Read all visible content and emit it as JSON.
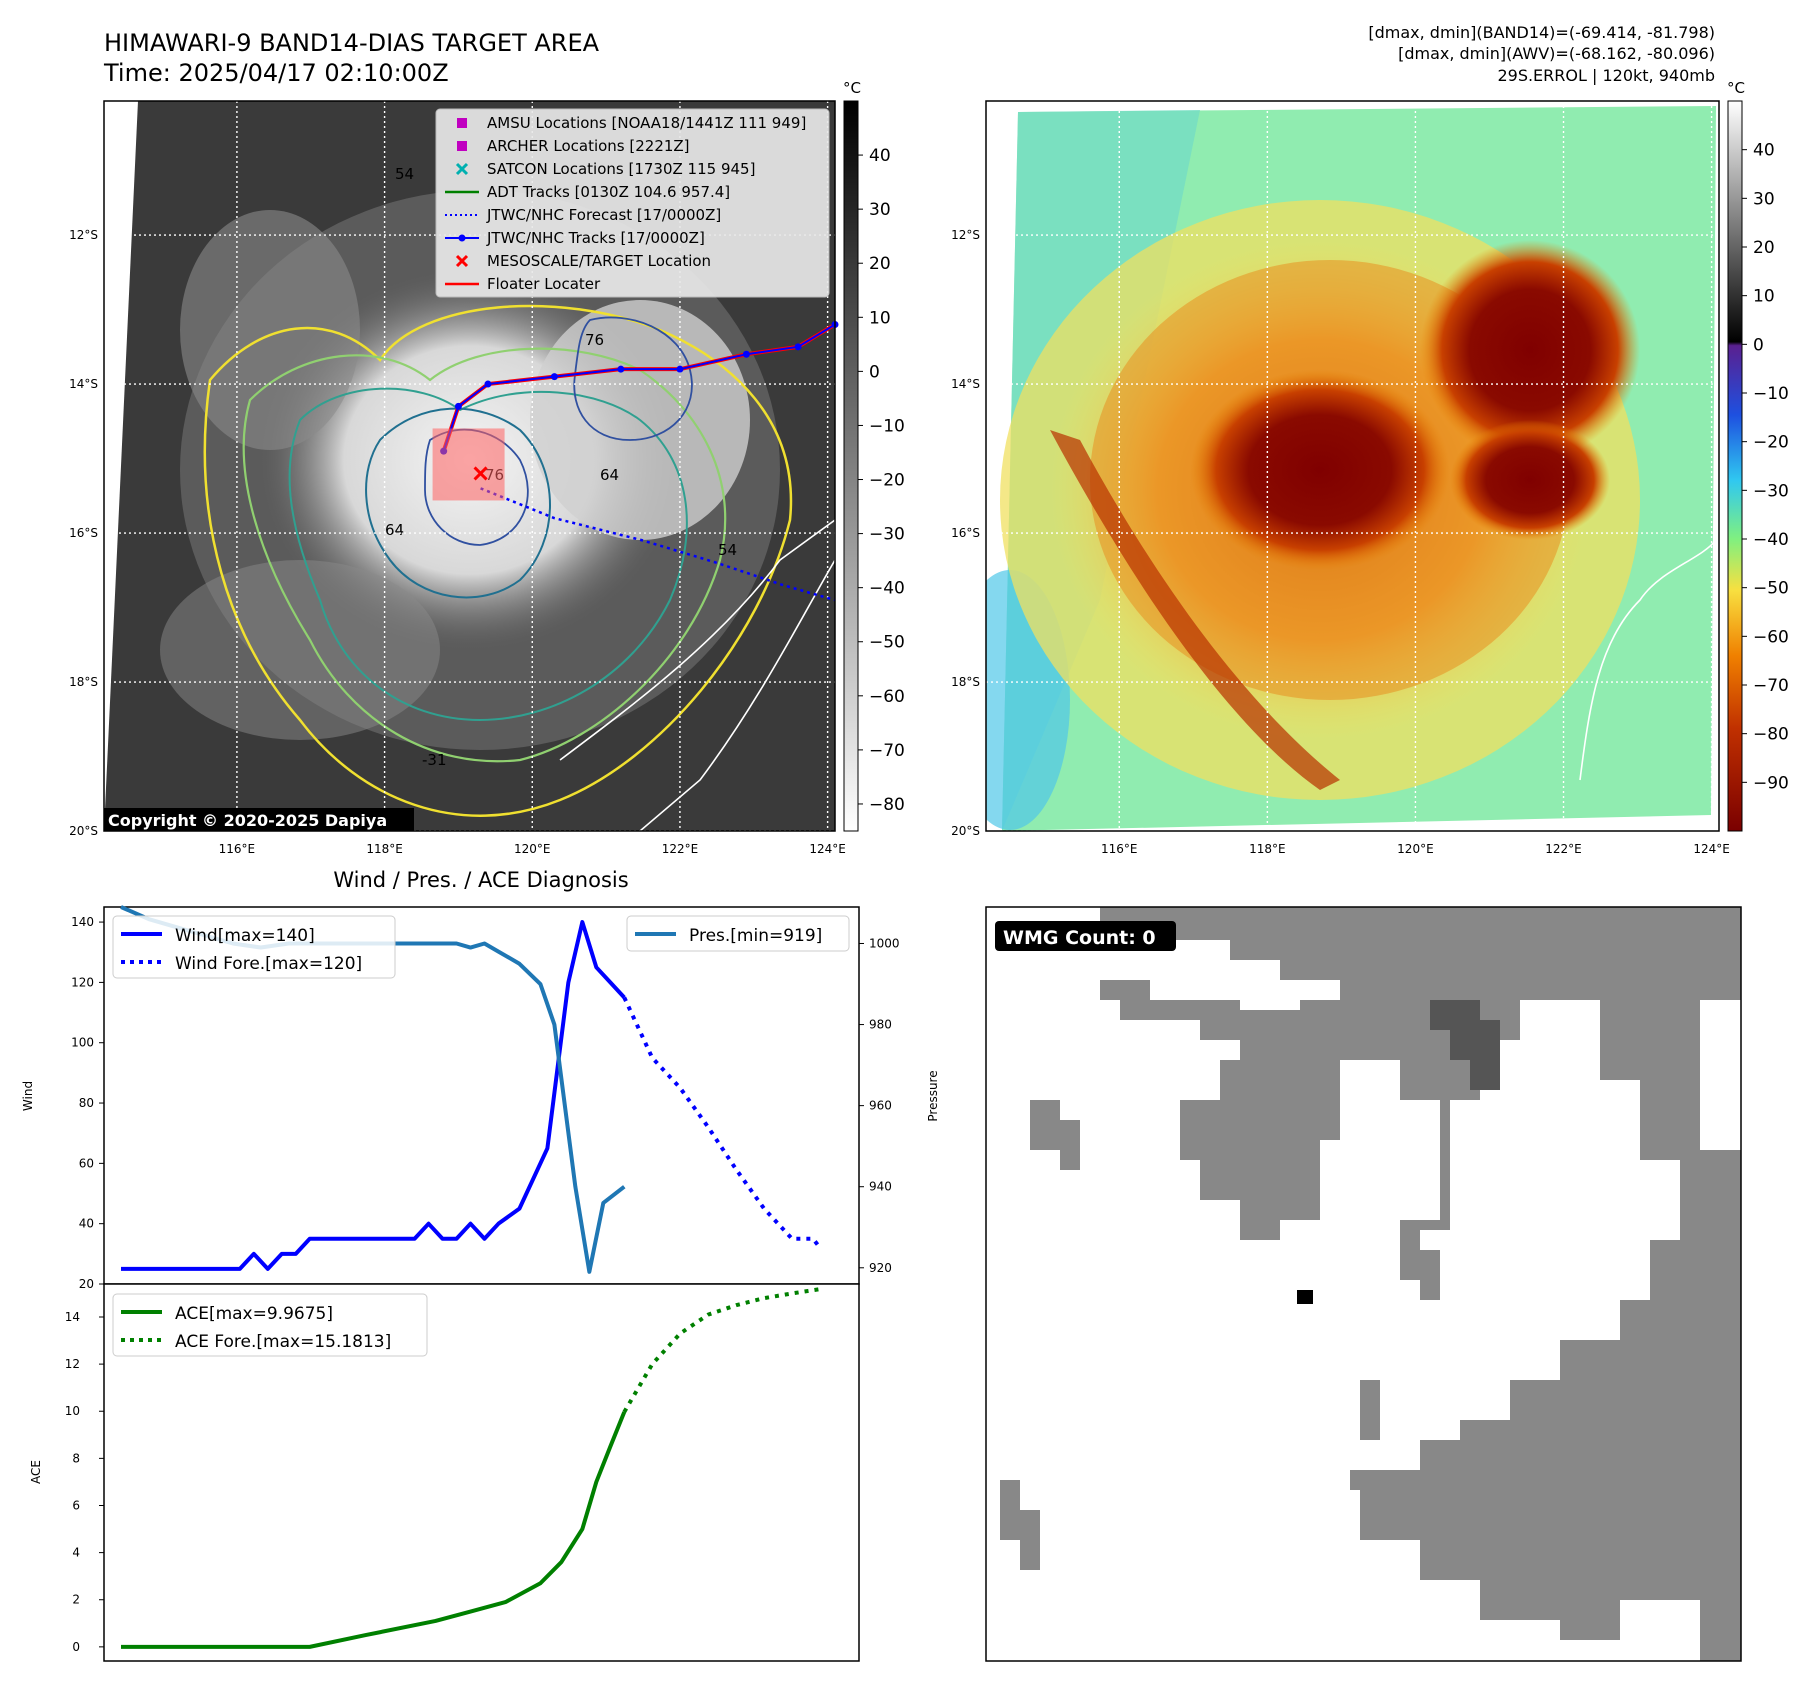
{
  "header": {
    "title_line1": "HIMAWARI-9 BAND14-DIAS TARGET AREA",
    "title_line2": "Time: 2025/04/17 02:10:00Z",
    "info_line1": "[dmax, dmin](BAND14)=(-69.414, -81.798)",
    "info_line2": "[dmax, dmin](AWV)=(-68.162, -80.096)",
    "info_line3": "29S.ERROL | 120kt, 940mb"
  },
  "map_common": {
    "lon_ticks": [
      "116°E",
      "118°E",
      "120°E",
      "122°E",
      "124°E"
    ],
    "lat_ticks": [
      "12°S",
      "14°S",
      "16°S",
      "18°S",
      "20°S"
    ],
    "colorbar_unit": "°C"
  },
  "ir_map": {
    "copyright": "Copyright © 2020-2025 Dapiya",
    "colorbar_ticks": [
      "40",
      "30",
      "20",
      "10",
      "0",
      "−10",
      "−20",
      "−30",
      "−40",
      "−50",
      "−60",
      "−70",
      "−80"
    ],
    "contour_labels": [
      "54",
      "76",
      "64",
      "76",
      "64",
      "54",
      "-31"
    ],
    "legend": [
      {
        "label": "AMSU Locations [NOAA18/1441Z 111 949]",
        "color": "#c000c0",
        "marker": "square"
      },
      {
        "label": "ARCHER Locations [2221Z]",
        "color": "#c000c0",
        "marker": "square"
      },
      {
        "label": "SATCON Locations [1730Z 115 945]",
        "color": "#00b0b0",
        "marker": "x"
      },
      {
        "label": "ADT Tracks [0130Z 104.6 957.4]",
        "color": "#008000",
        "marker": "line"
      },
      {
        "label": "JTWC/NHC Forecast [17/0000Z]",
        "color": "#0000ff",
        "marker": "dotted"
      },
      {
        "label": "JTWC/NHC Tracks [17/0000Z]",
        "color": "#0000ff",
        "marker": "line-dot"
      },
      {
        "label": "MESOSCALE/TARGET Location",
        "color": "#ff0000",
        "marker": "x"
      },
      {
        "label": "Floater Locater",
        "color": "#ff0000",
        "marker": "line"
      }
    ]
  },
  "enh_map": {
    "colorbar_ticks": [
      "40",
      "30",
      "20",
      "10",
      "0",
      "−10",
      "−20",
      "−30",
      "−40",
      "−50",
      "−60",
      "−70",
      "−80",
      "−90"
    ]
  },
  "diagnosis": {
    "title": "Wind / Pres. / ACE Diagnosis",
    "wind_ylabel": "Wind",
    "pres_ylabel": "Pressure",
    "ace_ylabel": "ACE",
    "legend_wind": "Wind[max=140]",
    "legend_wind_fore": "Wind Fore.[max=120]",
    "legend_pres": "Pres.[min=919]",
    "legend_ace": "ACE[max=9.9675]",
    "legend_ace_fore": "ACE Fore.[max=15.1813]"
  },
  "wmg": {
    "label": "WMG Count: 0"
  },
  "chart_data": [
    {
      "type": "heatmap",
      "title": "HIMAWARI-9 BAND14-DIAS TARGET AREA",
      "subtitle": "Time: 2025/04/17 02:10:00Z",
      "xlim": [
        114.2,
        124.1
      ],
      "ylim": [
        -20.0,
        -10.2
      ],
      "colorbar_range": [
        -85,
        50
      ],
      "colorbar_unit": "°C",
      "grid": true,
      "legend_position": "top-right",
      "jtwc_track": {
        "lon": [
          118.8,
          119.0,
          119.4,
          120.3,
          121.2,
          122.0,
          122.9,
          123.6,
          124.1
        ],
        "lat": [
          -14.9,
          -14.3,
          -14.0,
          -13.9,
          -13.8,
          -13.8,
          -13.6,
          -13.5,
          -13.2
        ]
      },
      "jtwc_forecast": {
        "lon": [
          119.3,
          120.3,
          121.5,
          122.5,
          123.4,
          124.1
        ],
        "lat": [
          -15.4,
          -15.8,
          -16.1,
          -16.4,
          -16.7,
          -16.9
        ]
      },
      "target": {
        "lon": 119.3,
        "lat": -15.2
      }
    },
    {
      "type": "heatmap",
      "xlim": [
        114.2,
        124.1
      ],
      "ylim": [
        -20.0,
        -10.2
      ],
      "colorbar_range": [
        -100,
        50
      ],
      "colorbar_unit": "°C",
      "grid": true
    },
    {
      "type": "line",
      "title": "Wind / Pres. / ACE Diagnosis",
      "ylabel": "Wind",
      "ylim": [
        20,
        145
      ],
      "y2label": "Pressure",
      "y2lim": [
        916,
        1009
      ],
      "xlim": [
        0,
        1
      ],
      "legend_position": "top-left",
      "series": [
        {
          "name": "Wind[max=140]",
          "x": [
            0.0,
            0.17,
            0.19,
            0.21,
            0.23,
            0.25,
            0.27,
            0.3,
            0.36,
            0.42,
            0.44,
            0.46,
            0.48,
            0.5,
            0.52,
            0.54,
            0.57,
            0.61,
            0.64,
            0.66,
            0.68,
            0.7,
            0.72
          ],
          "values": [
            25,
            25,
            30,
            25,
            30,
            30,
            35,
            35,
            35,
            35,
            40,
            35,
            35,
            40,
            35,
            40,
            45,
            65,
            120,
            140,
            125,
            120,
            115
          ]
        },
        {
          "name": "Wind Fore.[max=120]",
          "x": [
            0.72,
            0.76,
            0.8,
            0.84,
            0.88,
            0.92,
            0.96,
            0.99,
            1.0
          ],
          "values": [
            115,
            95,
            85,
            72,
            58,
            45,
            35,
            35,
            32
          ]
        },
        {
          "name": "Pres.[min=919]",
          "axis": "right",
          "x": [
            0.0,
            0.04,
            0.08,
            0.12,
            0.16,
            0.2,
            0.24,
            0.3,
            0.36,
            0.42,
            0.48,
            0.5,
            0.52,
            0.54,
            0.57,
            0.6,
            0.62,
            0.65,
            0.67,
            0.69,
            0.72
          ],
          "values": [
            1009,
            1006,
            1004,
            1002,
            1000,
            999,
            1000,
            1000,
            1000,
            1000,
            1000,
            999,
            1000,
            998,
            995,
            990,
            980,
            940,
            919,
            936,
            940
          ]
        }
      ]
    },
    {
      "type": "line",
      "ylabel": "ACE",
      "ylim": [
        -0.6,
        15.4
      ],
      "xlim": [
        0,
        1
      ],
      "legend_position": "top-left",
      "series": [
        {
          "name": "ACE[max=9.9675]",
          "x": [
            0.0,
            0.27,
            0.35,
            0.45,
            0.5,
            0.55,
            0.6,
            0.63,
            0.66,
            0.68,
            0.7,
            0.72
          ],
          "values": [
            0,
            0,
            0.5,
            1.1,
            1.5,
            1.9,
            2.7,
            3.6,
            5.0,
            7.0,
            8.5,
            9.9675
          ]
        },
        {
          "name": "ACE Fore.[max=15.1813]",
          "x": [
            0.72,
            0.76,
            0.8,
            0.84,
            0.88,
            0.92,
            0.96,
            1.0
          ],
          "values": [
            9.9675,
            12.0,
            13.3,
            14.1,
            14.5,
            14.8,
            15.0,
            15.1813
          ]
        }
      ]
    }
  ]
}
